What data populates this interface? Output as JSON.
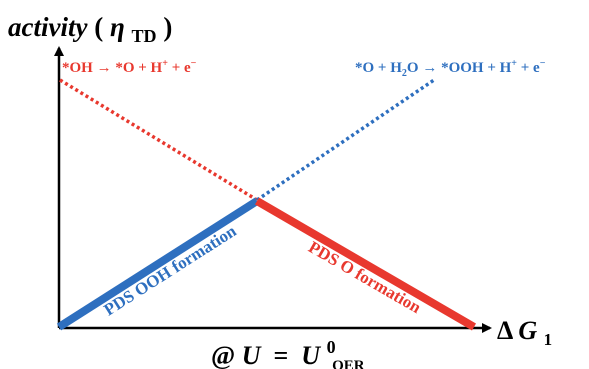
{
  "y_axis": {
    "label": "activity",
    "symbol": "η",
    "subscript": "TD"
  },
  "x_axis": {
    "prefix": "Δ",
    "variable": "G",
    "subscript": "1"
  },
  "condition": {
    "at": "@",
    "lhs": "U",
    "equals": " = ",
    "rhs": "U",
    "superscript": "0",
    "subscript": "OER"
  },
  "reactions": {
    "left": {
      "text_a": "*OH ",
      "arrow": "→",
      "text_b": " *O + H",
      "sup1": "+",
      "text_c": " + e",
      "sup2": "−"
    },
    "right": {
      "text_a": "*O + H",
      "sub1": "2",
      "text_b": "O ",
      "arrow": "→",
      "text_c": " *OOH + H",
      "sup1": "+",
      "text_d": " + e",
      "sup2": "−"
    }
  },
  "segments": {
    "left_label": "PDS OOH formation",
    "right_label": "PDS O formation"
  },
  "colors": {
    "blue": "#2e6fbf",
    "red": "#e8382e",
    "axis": "#000000"
  }
}
